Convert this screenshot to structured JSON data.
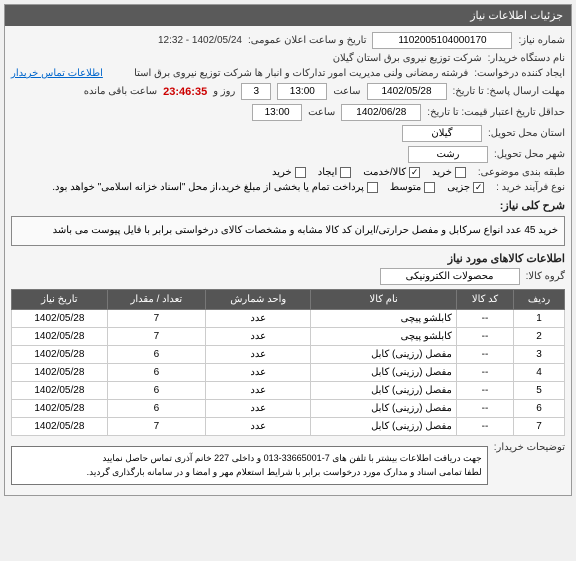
{
  "panel": {
    "title": "جزئیات اطلاعات نیاز"
  },
  "fields": {
    "need_number_label": "شماره نیاز:",
    "need_number": "1102005104000170",
    "announce_label": "تاریخ و ساعت اعلان عمومی:",
    "announce_value": "1402/05/24 - 12:32",
    "buyer_org_label": "نام دستگاه خریدار:",
    "buyer_org": "شرکت توزیع نیروی برق استان گیلان",
    "creator_label": "ایجاد کننده درخواست:",
    "creator": "فرشته رمضانی ولنی مدیریت امور تدارکات و انبار ها شرکت توزیع نیروی برق استا",
    "contact_link": "اطلاعات تماس خریدار",
    "deadline_label": "مهلت ارسال پاسخ: تا تاریخ:",
    "deadline_date": "1402/05/28",
    "time_label": "ساعت",
    "deadline_time": "13:00",
    "days_label": "روز و",
    "days_value": "3",
    "countdown": "23:46:35",
    "remain_label": "ساعت باقی مانده",
    "validity_label": "حداقل تاریخ اعتبار قیمت: تا تاریخ:",
    "validity_date": "1402/06/28",
    "validity_time": "13:00",
    "province_label": "استان محل تحویل:",
    "province": "گیلان",
    "city_label": "شهر محل تحویل:",
    "city": "رشت",
    "subject_group_label": "طبقه بندی موضوعی:"
  },
  "checkboxes": {
    "c1": "خرید",
    "c2": "کالا/خدمت",
    "c3": "ایجاد",
    "c4": "خرید",
    "buy_type_label": "نوع فرآیند خرید :",
    "buy_type_c1": "جزیی",
    "buy_type_c2": "متوسط",
    "payment_note": "پرداخت تمام یا بخشی از مبلغ خرید،از محل \"اسناد خزانه اسلامی\" خواهد بود."
  },
  "description": {
    "title": "شرح کلی نیاز:",
    "text": "خرید 45 عدد انواع سرکابل و مفصل حرارتی/ایران کد کالا مشابه و مشخصات کالای درخواستی برابر با فایل پیوست می باشد"
  },
  "goods": {
    "title": "اطلاعات کالاهای مورد نیاز",
    "group_label": "گروه کالا:",
    "group_value": "محصولات الکترونیکی"
  },
  "table": {
    "headers": [
      "ردیف",
      "کد کالا",
      "نام کالا",
      "واحد شمارش",
      "تعداد / مقدار",
      "تاریخ نیاز"
    ],
    "rows": [
      [
        "1",
        "--",
        "کابلشو پیچی",
        "عدد",
        "7",
        "1402/05/28"
      ],
      [
        "2",
        "--",
        "کابلشو پیچی",
        "عدد",
        "7",
        "1402/05/28"
      ],
      [
        "3",
        "--",
        "مفصل (رزینی) کابل",
        "عدد",
        "6",
        "1402/05/28"
      ],
      [
        "4",
        "--",
        "مفصل (رزینی) کابل",
        "عدد",
        "6",
        "1402/05/28"
      ],
      [
        "5",
        "--",
        "مفصل (رزینی) کابل",
        "عدد",
        "6",
        "1402/05/28"
      ],
      [
        "6",
        "--",
        "مفصل (رزینی) کابل",
        "عدد",
        "6",
        "1402/05/28"
      ],
      [
        "7",
        "--",
        "مفصل (رزینی) کابل",
        "عدد",
        "7",
        "1402/05/28"
      ]
    ]
  },
  "notes": {
    "label": "توضیحات خریدار:",
    "text": "جهت دریافت اطلاعات بیشتر با تلفن های 7-33665001-013 و داخلی 227 خانم آذری تماس حاصل نمایید\nلطفا تمامی اسناد و مدارک مورد درخواست برابر با شرایط استعلام مهر و امضا و در سامانه بارگذاری گردید."
  }
}
